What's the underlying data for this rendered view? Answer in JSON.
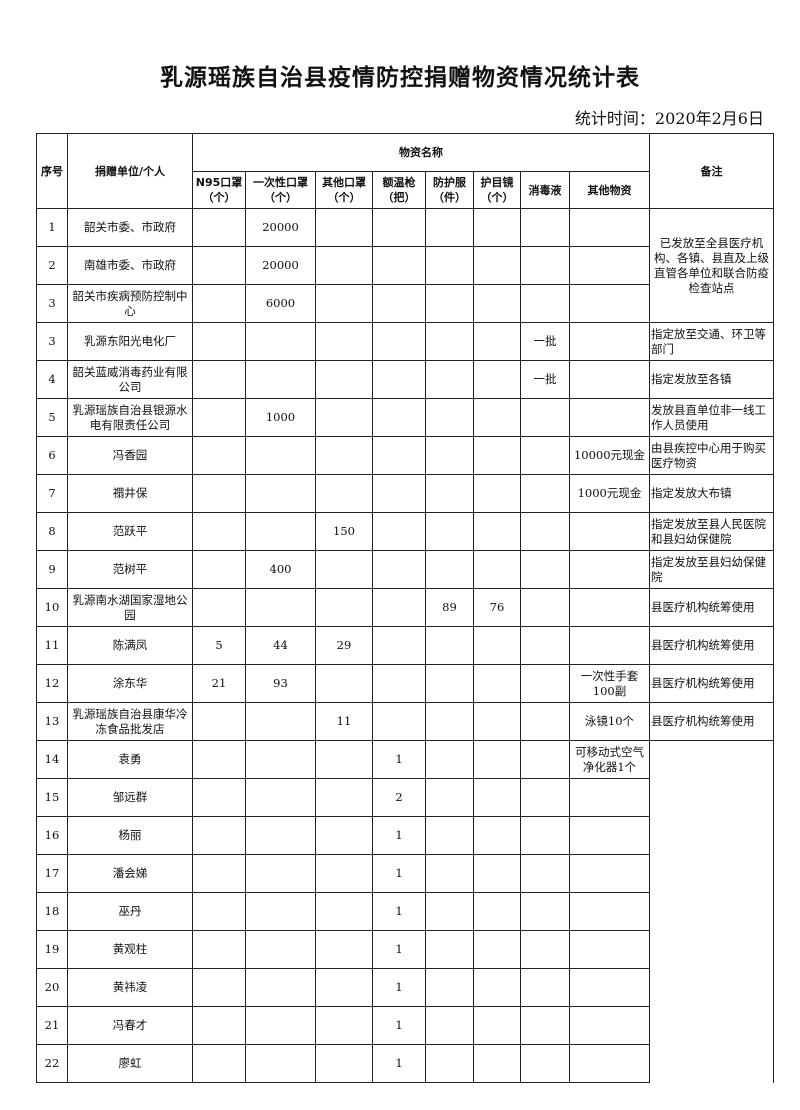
{
  "title": "乳源瑶族自治县疫情防控捐赠物资情况统计表",
  "date_label": "统计时间：2020年2月6日",
  "headers": {
    "seq": "序号",
    "donor": "捐赠单位/个人",
    "group": "物资名称",
    "remark": "备注",
    "items": [
      "N95口罩（个）",
      "一次性口罩（个）",
      "其他口罩（个）",
      "额温枪（把）",
      "防护服（件）",
      "护目镜（个）",
      "消毒液",
      "其他物资"
    ]
  },
  "rows": [
    {
      "seq": "1",
      "donor": "韶关市委、市政府",
      "v": [
        "",
        "20000",
        "",
        "",
        "",
        "",
        "",
        ""
      ],
      "remark": "已发放至全县医疗机构、各镇、县直及上级直管各单位和联合防疫检查站点",
      "span": 3
    },
    {
      "seq": "2",
      "donor": "南雄市委、市政府",
      "v": [
        "",
        "20000",
        "",
        "",
        "",
        "",
        "",
        ""
      ]
    },
    {
      "seq": "3",
      "donor": "韶关市疾病预防控制中心",
      "v": [
        "",
        "6000",
        "",
        "",
        "",
        "",
        "",
        ""
      ]
    },
    {
      "seq": "3",
      "donor": "乳源东阳光电化厂",
      "v": [
        "",
        "",
        "",
        "",
        "",
        "",
        "一批",
        ""
      ],
      "remark": "指定放至交通、环卫等部门"
    },
    {
      "seq": "4",
      "donor": "韶关蓝威消毒药业有限公司",
      "v": [
        "",
        "",
        "",
        "",
        "",
        "",
        "一批",
        ""
      ],
      "remark": "指定发放至各镇"
    },
    {
      "seq": "5",
      "donor": "乳源瑶族自治县银源水电有限责任公司",
      "v": [
        "",
        "1000",
        "",
        "",
        "",
        "",
        "",
        ""
      ],
      "remark": "发放县直单位非一线工作人员使用"
    },
    {
      "seq": "6",
      "donor": "冯香园",
      "v": [
        "",
        "",
        "",
        "",
        "",
        "",
        "",
        "10000元现金"
      ],
      "remark": "由县疾控中心用于购买医疗物资"
    },
    {
      "seq": "7",
      "donor": "禤井保",
      "v": [
        "",
        "",
        "",
        "",
        "",
        "",
        "",
        "1000元现金"
      ],
      "remark": "指定发放大布镇"
    },
    {
      "seq": "8",
      "donor": "范跃平",
      "v": [
        "",
        "",
        "150",
        "",
        "",
        "",
        "",
        ""
      ],
      "remark": "指定发放至县人民医院和县妇幼保健院"
    },
    {
      "seq": "9",
      "donor": "范树平",
      "v": [
        "",
        "400",
        "",
        "",
        "",
        "",
        "",
        ""
      ],
      "remark": "指定发放至县妇幼保健院"
    },
    {
      "seq": "10",
      "donor": "乳源南水湖国家湿地公园",
      "v": [
        "",
        "",
        "",
        "",
        "89",
        "76",
        "",
        ""
      ],
      "remark": "县医疗机构统筹使用"
    },
    {
      "seq": "11",
      "donor": "陈满凤",
      "v": [
        "5",
        "44",
        "29",
        "",
        "",
        "",
        "",
        ""
      ],
      "remark": "县医疗机构统筹使用"
    },
    {
      "seq": "12",
      "donor": "涂东华",
      "v": [
        "21",
        "93",
        "",
        "",
        "",
        "",
        "",
        "一次性手套100副"
      ],
      "remark": "县医疗机构统筹使用"
    },
    {
      "seq": "13",
      "donor": "乳源瑶族自治县康华冷冻食品批发店",
      "v": [
        "",
        "",
        "11",
        "",
        "",
        "",
        "",
        "泳镜10个"
      ],
      "remark": "县医疗机构统筹使用"
    },
    {
      "seq": "14",
      "donor": "袁勇",
      "v": [
        "",
        "",
        "",
        "1",
        "",
        "",
        "",
        "可移动式空气净化器1个"
      ],
      "remark": "",
      "span": 9,
      "open": true
    },
    {
      "seq": "15",
      "donor": "邹远群",
      "v": [
        "",
        "",
        "",
        "2",
        "",
        "",
        "",
        ""
      ]
    },
    {
      "seq": "16",
      "donor": "杨丽",
      "v": [
        "",
        "",
        "",
        "1",
        "",
        "",
        "",
        ""
      ]
    },
    {
      "seq": "17",
      "donor": "潘会娣",
      "v": [
        "",
        "",
        "",
        "1",
        "",
        "",
        "",
        ""
      ]
    },
    {
      "seq": "18",
      "donor": "巫丹",
      "v": [
        "",
        "",
        "",
        "1",
        "",
        "",
        "",
        ""
      ]
    },
    {
      "seq": "19",
      "donor": "黄观柱",
      "v": [
        "",
        "",
        "",
        "1",
        "",
        "",
        "",
        ""
      ]
    },
    {
      "seq": "20",
      "donor": "黄祎凌",
      "v": [
        "",
        "",
        "",
        "1",
        "",
        "",
        "",
        ""
      ]
    },
    {
      "seq": "21",
      "donor": "冯春才",
      "v": [
        "",
        "",
        "",
        "1",
        "",
        "",
        "",
        ""
      ]
    },
    {
      "seq": "22",
      "donor": "廖虹",
      "v": [
        "",
        "",
        "",
        "1",
        "",
        "",
        "",
        ""
      ]
    }
  ]
}
